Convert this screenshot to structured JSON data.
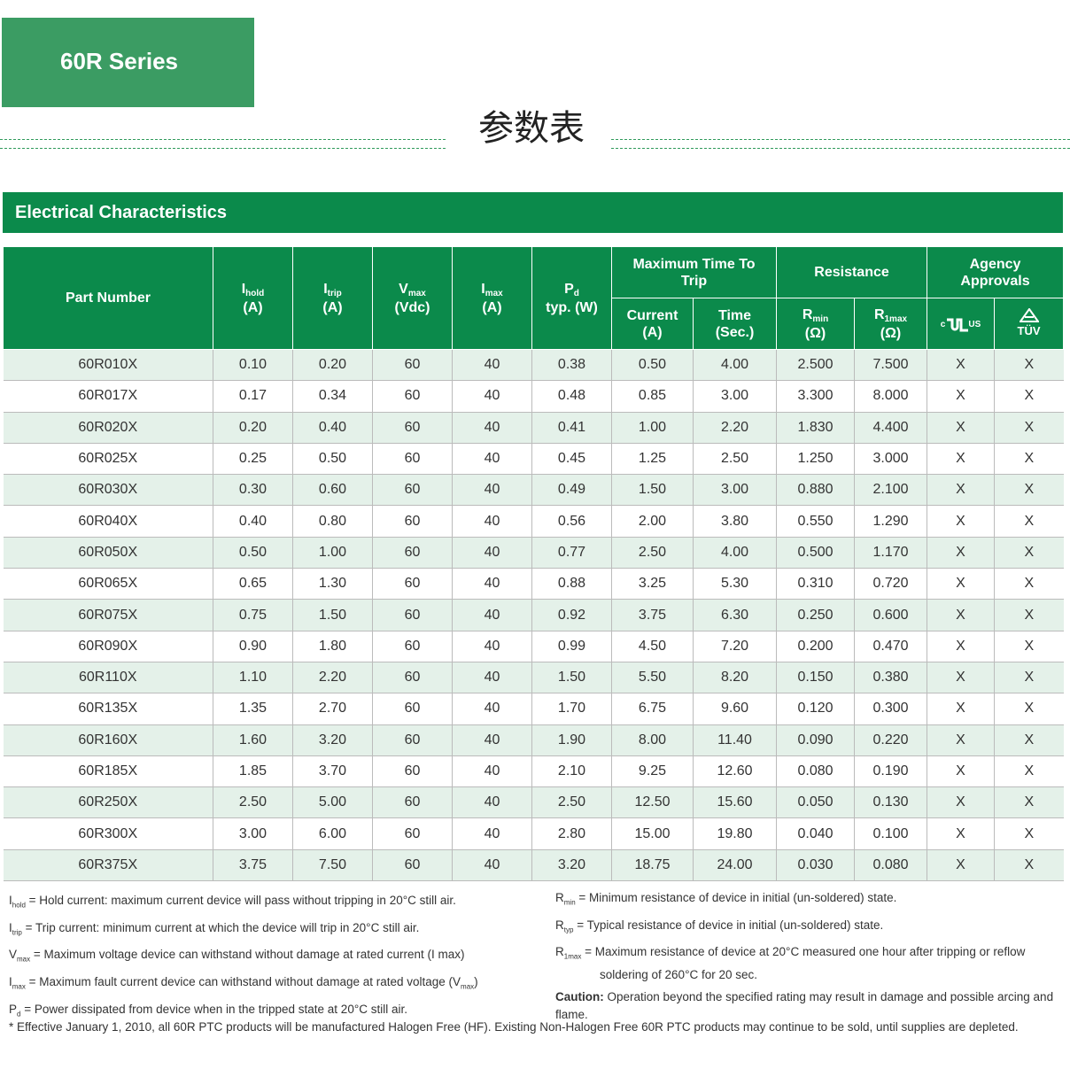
{
  "badge": "60R Series",
  "heading": "参数表",
  "section_title": "Electrical Characteristics",
  "table": {
    "headers": {
      "part_number": "Part Number",
      "ihold": {
        "symbol": "I",
        "sub": "hold",
        "unit": "(A)"
      },
      "itrip": {
        "symbol": "I",
        "sub": "trip",
        "unit": "(A)"
      },
      "vmax": {
        "symbol": "V",
        "sub": "max",
        "unit": "(Vdc)"
      },
      "imax": {
        "symbol": "I",
        "sub": "max",
        "unit": "(A)"
      },
      "pd": {
        "symbol": "P",
        "sub": "d",
        "unit": "typ.   (W)"
      },
      "trip_group": "Maximum Time To Trip",
      "current": "Current (A)",
      "time": "Time (Sec.)",
      "resistance": "Resistance",
      "rmin": {
        "symbol": "R",
        "sub": "min",
        "unit": "(Ω)"
      },
      "r1max": {
        "symbol": "R",
        "sub": "1max",
        "unit": "(Ω)"
      },
      "agency": "Agency Approvals",
      "ul": {
        "c": "c",
        "us": "US"
      },
      "tuv": "TÜV"
    },
    "rows": [
      [
        "60R010X",
        "0.10",
        "0.20",
        "60",
        "40",
        "0.38",
        "0.50",
        "4.00",
        "2.500",
        "7.500",
        "X",
        "X"
      ],
      [
        "60R017X",
        "0.17",
        "0.34",
        "60",
        "40",
        "0.48",
        "0.85",
        "3.00",
        "3.300",
        "8.000",
        "X",
        "X"
      ],
      [
        "60R020X",
        "0.20",
        "0.40",
        "60",
        "40",
        "0.41",
        "1.00",
        "2.20",
        "1.830",
        "4.400",
        "X",
        "X"
      ],
      [
        "60R025X",
        "0.25",
        "0.50",
        "60",
        "40",
        "0.45",
        "1.25",
        "2.50",
        "1.250",
        "3.000",
        "X",
        "X"
      ],
      [
        "60R030X",
        "0.30",
        "0.60",
        "60",
        "40",
        "0.49",
        "1.50",
        "3.00",
        "0.880",
        "2.100",
        "X",
        "X"
      ],
      [
        "60R040X",
        "0.40",
        "0.80",
        "60",
        "40",
        "0.56",
        "2.00",
        "3.80",
        "0.550",
        "1.290",
        "X",
        "X"
      ],
      [
        "60R050X",
        "0.50",
        "1.00",
        "60",
        "40",
        "0.77",
        "2.50",
        "4.00",
        "0.500",
        "1.170",
        "X",
        "X"
      ],
      [
        "60R065X",
        "0.65",
        "1.30",
        "60",
        "40",
        "0.88",
        "3.25",
        "5.30",
        "0.310",
        "0.720",
        "X",
        "X"
      ],
      [
        "60R075X",
        "0.75",
        "1.50",
        "60",
        "40",
        "0.92",
        "3.75",
        "6.30",
        "0.250",
        "0.600",
        "X",
        "X"
      ],
      [
        "60R090X",
        "0.90",
        "1.80",
        "60",
        "40",
        "0.99",
        "4.50",
        "7.20",
        "0.200",
        "0.470",
        "X",
        "X"
      ],
      [
        "60R110X",
        "1.10",
        "2.20",
        "60",
        "40",
        "1.50",
        "5.50",
        "8.20",
        "0.150",
        "0.380",
        "X",
        "X"
      ],
      [
        "60R135X",
        "1.35",
        "2.70",
        "60",
        "40",
        "1.70",
        "6.75",
        "9.60",
        "0.120",
        "0.300",
        "X",
        "X"
      ],
      [
        "60R160X",
        "1.60",
        "3.20",
        "60",
        "40",
        "1.90",
        "8.00",
        "11.40",
        "0.090",
        "0.220",
        "X",
        "X"
      ],
      [
        "60R185X",
        "1.85",
        "3.70",
        "60",
        "40",
        "2.10",
        "9.25",
        "12.60",
        "0.080",
        "0.190",
        "X",
        "X"
      ],
      [
        "60R250X",
        "2.50",
        "5.00",
        "60",
        "40",
        "2.50",
        "12.50",
        "15.60",
        "0.050",
        "0.130",
        "X",
        "X"
      ],
      [
        "60R300X",
        "3.00",
        "6.00",
        "60",
        "40",
        "2.80",
        "15.00",
        "19.80",
        "0.040",
        "0.100",
        "X",
        "X"
      ],
      [
        "60R375X",
        "3.75",
        "7.50",
        "60",
        "40",
        "3.20",
        "18.75",
        "24.00",
        "0.030",
        "0.080",
        "X",
        "X"
      ]
    ]
  },
  "notes_left": [
    {
      "symbol": "I",
      "sub": "hold",
      "text": "= Hold current: maximum current device will pass without tripping in 20°C still air."
    },
    {
      "symbol": "I",
      "sub": "trip",
      "text": "= Trip current: minimum current at which the device will trip in 20°C still air."
    },
    {
      "symbol": "V",
      "sub": "max",
      "text": "= Maximum voltage device can withstand without damage at rated current (I max)"
    },
    {
      "symbol": "I",
      "sub": "max",
      "text": "= Maximum fault current device can withstand without damage at rated voltage (V",
      "sub2": "max",
      "tail": ")"
    },
    {
      "symbol": "P",
      "sub": "d",
      "text": "= Power dissipated from device when in the tripped state at 20°C still air."
    }
  ],
  "notes_right": [
    {
      "symbol": "R",
      "sub": "min",
      "text": "= Minimum resistance of device in initial (un-soldered) state."
    },
    {
      "symbol": "R",
      "sub": "typ",
      "text": "= Typical resistance of device in initial (un-soldered) state."
    },
    {
      "symbol": "R",
      "sub": "1max",
      "text": "= Maximum resistance of device at 20°C measured one hour after tripping or reflow soldering of 260°C for 20 sec."
    }
  ],
  "caution": {
    "label": "Caution:",
    "text": "Operation beyond the specified rating may result in damage and possible arcing and flame."
  },
  "footnote": "* Effective January 1, 2010, all 60R PTC products will be manufactured Halogen Free (HF). Existing Non-Halogen Free 60R PTC products may continue to be sold, until supplies are depleted."
}
